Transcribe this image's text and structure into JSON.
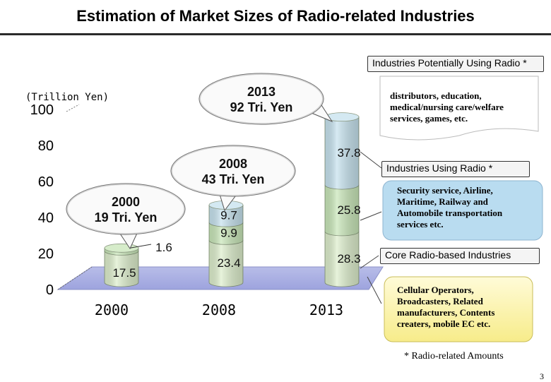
{
  "page": {
    "title": "Estimation of Market Sizes of Radio-related Industries",
    "page_number": "3",
    "footnote": "* Radio-related Amounts"
  },
  "chart_data": {
    "type": "bar",
    "stacked": true,
    "unit_label": "(Trillion Yen)",
    "ylim": [
      0,
      100
    ],
    "yticks": [
      "0",
      "20",
      "40",
      "60",
      "80",
      "100"
    ],
    "categories": [
      "2000",
      "2008",
      "2013"
    ],
    "series": [
      {
        "name": "Core Radio-based Industries",
        "values": [
          17.5,
          23.4,
          28.3
        ],
        "value_labels": [
          "17.5",
          "23.4",
          "28.3"
        ],
        "color": "#ddeecc"
      },
      {
        "name": "Industries Using Radio *",
        "values": [
          1.6,
          9.9,
          25.8
        ],
        "value_labels": [
          "1.6",
          "9.9",
          "25.8"
        ],
        "color": "#c8e6b8"
      },
      {
        "name": "Industries Potentially Using Radio *",
        "values": [
          0,
          9.7,
          37.8
        ],
        "value_labels": [
          "",
          "9.7",
          "37.8"
        ],
        "color": "#c6e2ee"
      }
    ],
    "totals": [
      {
        "year": "2000",
        "label": "19 Tri. Yen"
      },
      {
        "year": "2008",
        "label": "43 Tri. Yen"
      },
      {
        "year": "2013",
        "label": "92 Tri. Yen"
      }
    ],
    "legend": [
      {
        "label": "Industries Potentially Using Radio *",
        "description": "distributors, education, medical/nursing care/welfare services, games, etc."
      },
      {
        "label": "Industries Using Radio *",
        "description": "Security service, Airline, Maritime, Railway and Automobile transportation services etc."
      },
      {
        "label": "Core Radio-based Industries",
        "description": "Cellular Operators, Broadcasters, Related manufacturers, Contents creaters, mobile EC etc."
      }
    ],
    "grid": false,
    "legend_position": "right"
  }
}
